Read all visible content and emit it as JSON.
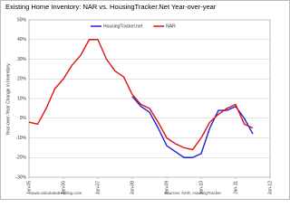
{
  "chart_data": {
    "type": "line",
    "title": "Existing Home Inventory: NAR vs. HousingTracker.Net Year-over-year",
    "y_label": "Year-over-Year Change in Inventory",
    "source_left": "www.calculatedriskblog.com",
    "source_right": "Sources: NAR, HousingTracker",
    "x": [
      2005,
      2005.25,
      2005.5,
      2005.75,
      2006,
      2006.25,
      2006.5,
      2006.75,
      2007,
      2007.25,
      2007.5,
      2007.75,
      2008,
      2008.25,
      2008.5,
      2008.75,
      2009,
      2009.25,
      2009.5,
      2009.75,
      2010,
      2010.25,
      2010.5,
      2010.75,
      2011,
      2011.25,
      2011.5
    ],
    "series": [
      {
        "name": "HousingTracker.net",
        "color": "#1f1fd6",
        "values": [
          null,
          null,
          null,
          null,
          null,
          null,
          null,
          null,
          null,
          null,
          null,
          null,
          11,
          6,
          3,
          -5,
          -14,
          -17,
          -20,
          -20,
          -18,
          -5,
          4,
          4,
          6,
          0,
          -8
        ]
      },
      {
        "name": "NAR",
        "color": "#e01010",
        "values": [
          -2,
          -3,
          5,
          15,
          20,
          27,
          32,
          40,
          40,
          30,
          24,
          21,
          12,
          7,
          5,
          -2,
          -10,
          -13,
          -15,
          -16,
          -10,
          -2,
          2,
          5,
          7,
          -3,
          -5
        ]
      }
    ],
    "xlim": [
      2005,
      2012
    ],
    "xticks": [
      {
        "value": 2005,
        "label": "Jan-05"
      },
      {
        "value": 2006,
        "label": "Jan-06"
      },
      {
        "value": 2007,
        "label": "Jan-07"
      },
      {
        "value": 2008,
        "label": "Jan-08"
      },
      {
        "value": 2009,
        "label": "Jan-09"
      },
      {
        "value": 2010,
        "label": "Jan-10"
      },
      {
        "value": 2011,
        "label": "Jan-11"
      },
      {
        "value": 2012,
        "label": "Jan-12"
      }
    ],
    "ylim": [
      -30,
      50
    ],
    "yticks": [
      {
        "value": -30,
        "label": "-30%"
      },
      {
        "value": -20,
        "label": "-20%"
      },
      {
        "value": -10,
        "label": "-10%"
      },
      {
        "value": 0,
        "label": "0%"
      },
      {
        "value": 10,
        "label": "10%"
      },
      {
        "value": 20,
        "label": "20%"
      },
      {
        "value": 30,
        "label": "30%"
      },
      {
        "value": 40,
        "label": "40%"
      },
      {
        "value": 50,
        "label": "50%"
      }
    ],
    "grid": true
  }
}
